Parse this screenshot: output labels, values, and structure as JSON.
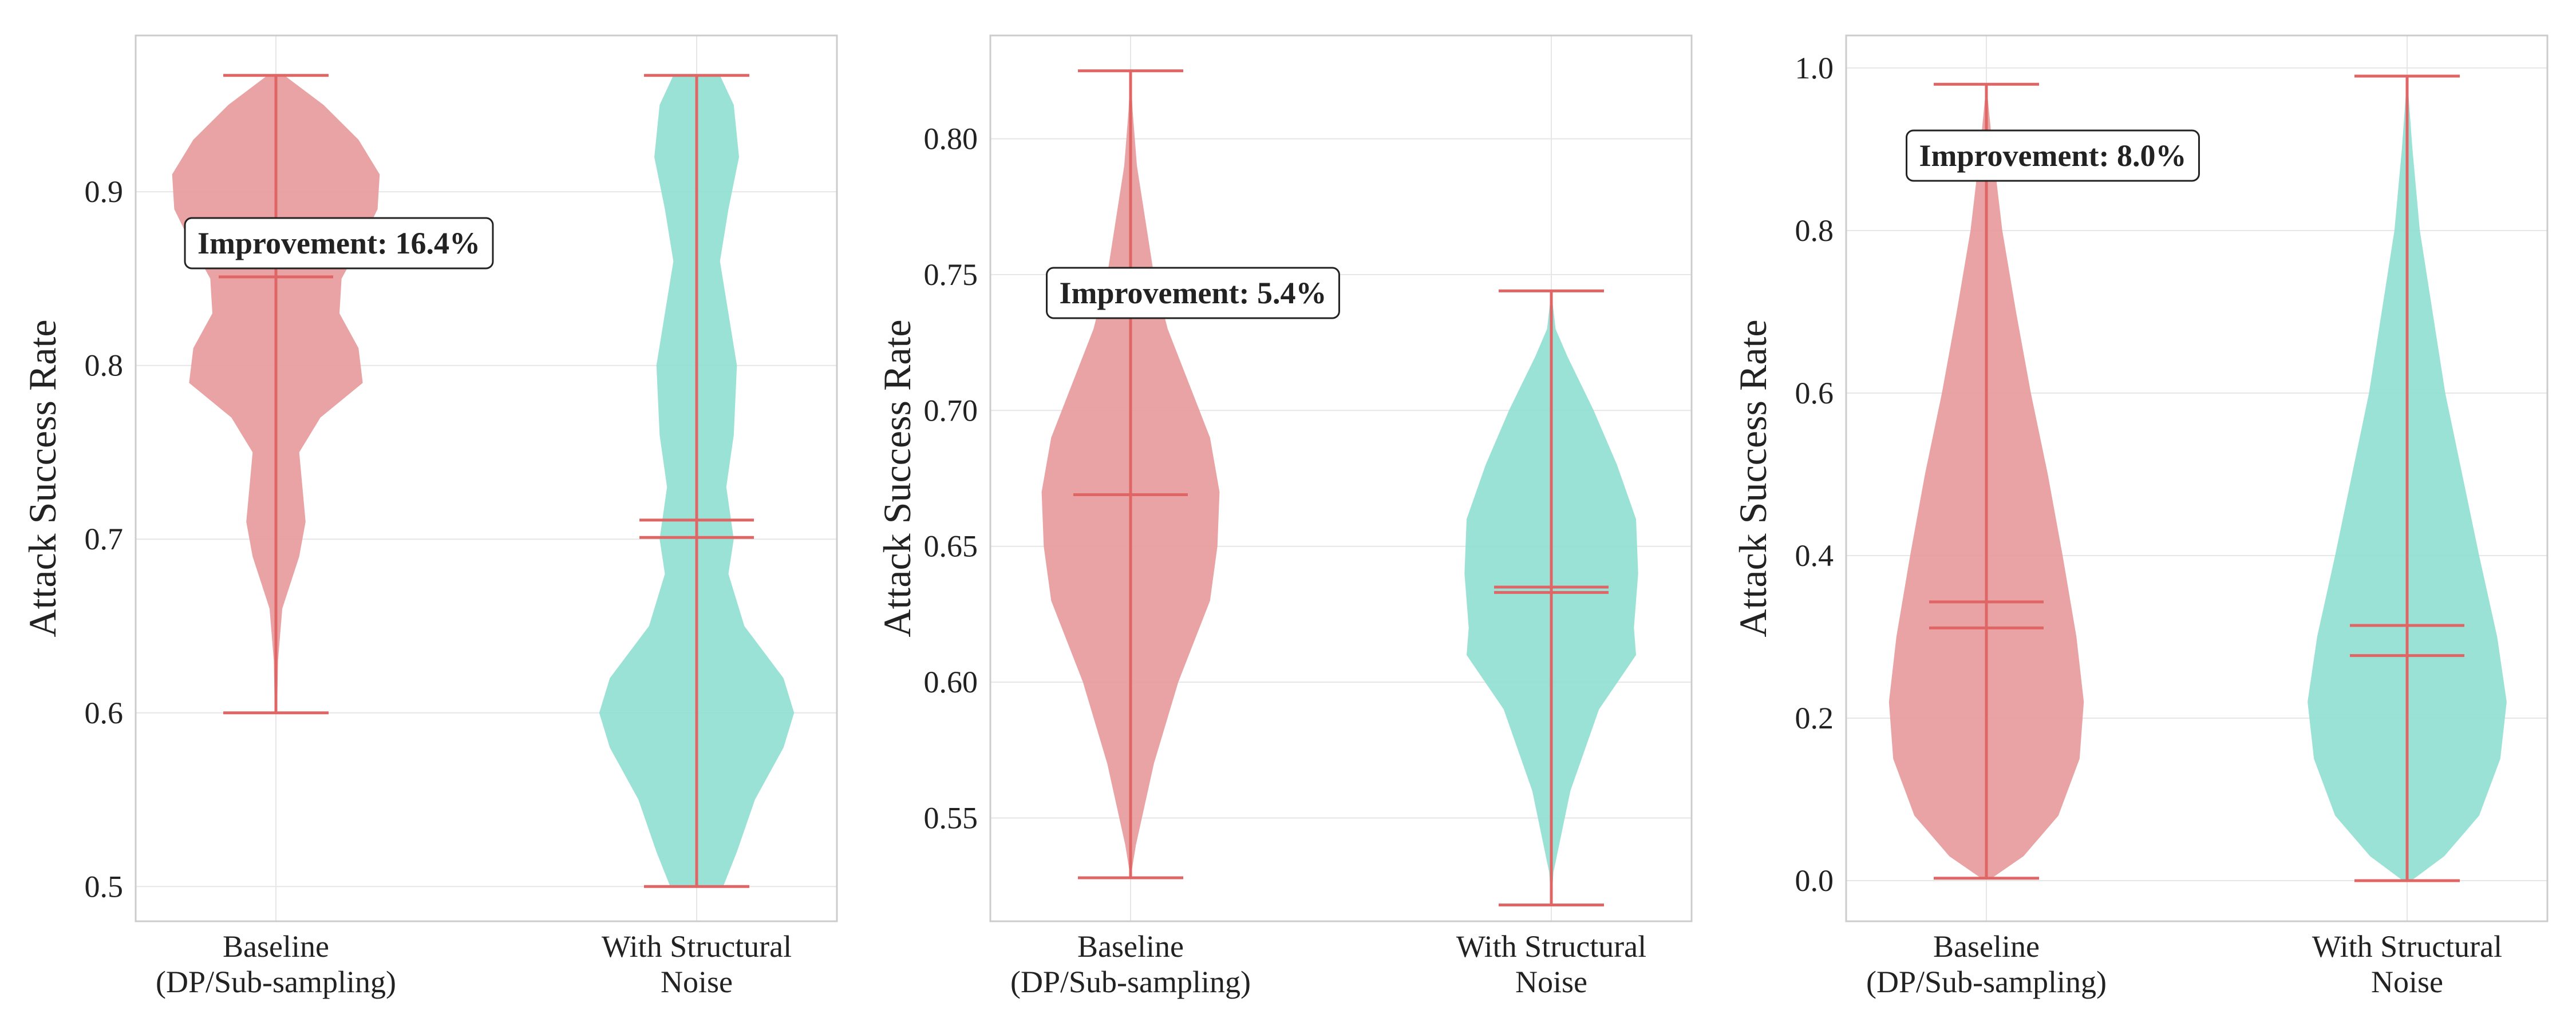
{
  "colors": {
    "baseline": "#e8999a",
    "structural": "#8fdfd2",
    "lines": "#e06666",
    "grid": "#e6e6e6",
    "frame": "#cccccc"
  },
  "chart_data": [
    {
      "type": "violin",
      "ylabel": "Attack Success Rate",
      "categories": [
        "Baseline\n(DP/Sub-sampling)",
        "With Structural\nNoise"
      ],
      "ylim": [
        0.48,
        0.99
      ],
      "yticks": [
        0.5,
        0.6,
        0.7,
        0.8,
        0.9
      ],
      "ytick_labels": [
        "0.5",
        "0.6",
        "0.7",
        "0.8",
        "0.9"
      ],
      "grid": true,
      "annotation": "Improvement: 16.4%",
      "series": [
        {
          "min": 0.6,
          "max": 0.967,
          "mean": 0.857,
          "median": 0.851,
          "density": [
            [
              0.6,
              0.01
            ],
            [
              0.63,
              0.02
            ],
            [
              0.66,
              0.06
            ],
            [
              0.69,
              0.22
            ],
            [
              0.71,
              0.28
            ],
            [
              0.73,
              0.25
            ],
            [
              0.75,
              0.22
            ],
            [
              0.77,
              0.42
            ],
            [
              0.79,
              0.82
            ],
            [
              0.81,
              0.78
            ],
            [
              0.83,
              0.6
            ],
            [
              0.85,
              0.62
            ],
            [
              0.87,
              0.8
            ],
            [
              0.89,
              0.96
            ],
            [
              0.91,
              0.98
            ],
            [
              0.93,
              0.78
            ],
            [
              0.95,
              0.45
            ],
            [
              0.967,
              0.08
            ]
          ]
        },
        {
          "min": 0.5,
          "max": 0.967,
          "mean": 0.711,
          "median": 0.701,
          "density": [
            [
              0.5,
              0.25
            ],
            [
              0.52,
              0.38
            ],
            [
              0.55,
              0.55
            ],
            [
              0.58,
              0.82
            ],
            [
              0.6,
              0.92
            ],
            [
              0.62,
              0.82
            ],
            [
              0.65,
              0.45
            ],
            [
              0.68,
              0.3
            ],
            [
              0.7,
              0.35
            ],
            [
              0.73,
              0.28
            ],
            [
              0.76,
              0.35
            ],
            [
              0.8,
              0.38
            ],
            [
              0.83,
              0.3
            ],
            [
              0.86,
              0.22
            ],
            [
              0.89,
              0.3
            ],
            [
              0.92,
              0.4
            ],
            [
              0.95,
              0.35
            ],
            [
              0.967,
              0.22
            ]
          ]
        }
      ]
    },
    {
      "type": "violin",
      "ylabel": "Attack Success Rate",
      "categories": [
        "Baseline\n(DP/Sub-sampling)",
        "With Structural\nNoise"
      ],
      "ylim": [
        0.512,
        0.838
      ],
      "yticks": [
        0.55,
        0.6,
        0.65,
        0.7,
        0.75,
        0.8
      ],
      "ytick_labels": [
        "0.55",
        "0.60",
        "0.65",
        "0.70",
        "0.75",
        "0.80"
      ],
      "grid": true,
      "annotation": "Improvement: 5.4%",
      "series": [
        {
          "min": 0.528,
          "max": 0.825,
          "mean": 0.669,
          "median": 0.669,
          "density": [
            [
              0.528,
              0.0
            ],
            [
              0.54,
              0.05
            ],
            [
              0.57,
              0.22
            ],
            [
              0.6,
              0.45
            ],
            [
              0.63,
              0.75
            ],
            [
              0.65,
              0.82
            ],
            [
              0.67,
              0.84
            ],
            [
              0.69,
              0.75
            ],
            [
              0.71,
              0.55
            ],
            [
              0.73,
              0.35
            ],
            [
              0.75,
              0.22
            ],
            [
              0.77,
              0.14
            ],
            [
              0.79,
              0.06
            ],
            [
              0.81,
              0.02
            ],
            [
              0.825,
              0.0
            ]
          ]
        },
        {
          "min": 0.518,
          "max": 0.744,
          "mean": 0.635,
          "median": 0.633,
          "density": [
            [
              0.518,
              0.0
            ],
            [
              0.53,
              0.02
            ],
            [
              0.56,
              0.18
            ],
            [
              0.59,
              0.45
            ],
            [
              0.61,
              0.8
            ],
            [
              0.62,
              0.78
            ],
            [
              0.64,
              0.82
            ],
            [
              0.66,
              0.8
            ],
            [
              0.68,
              0.62
            ],
            [
              0.7,
              0.4
            ],
            [
              0.72,
              0.15
            ],
            [
              0.73,
              0.04
            ],
            [
              0.744,
              0.0
            ]
          ]
        }
      ]
    },
    {
      "type": "violin",
      "ylabel": "Attack Success Rate",
      "categories": [
        "Baseline\n(DP/Sub-sampling)",
        "With Structural\nNoise"
      ],
      "ylim": [
        -0.05,
        1.04
      ],
      "yticks": [
        0.0,
        0.2,
        0.4,
        0.6,
        0.8,
        1.0
      ],
      "ytick_labels": [
        "0.0",
        "0.2",
        "0.4",
        "0.6",
        "0.8",
        "1.0"
      ],
      "grid": true,
      "annotation": "Improvement: 8.0%",
      "series": [
        {
          "min": 0.003,
          "max": 0.98,
          "mean": 0.343,
          "median": 0.311,
          "density": [
            [
              0.003,
              0.05
            ],
            [
              0.03,
              0.35
            ],
            [
              0.08,
              0.68
            ],
            [
              0.15,
              0.88
            ],
            [
              0.22,
              0.92
            ],
            [
              0.3,
              0.85
            ],
            [
              0.4,
              0.72
            ],
            [
              0.5,
              0.58
            ],
            [
              0.6,
              0.42
            ],
            [
              0.7,
              0.28
            ],
            [
              0.8,
              0.15
            ],
            [
              0.9,
              0.06
            ],
            [
              0.98,
              0.0
            ]
          ]
        },
        {
          "min": 0.0,
          "max": 0.99,
          "mean": 0.314,
          "median": 0.277,
          "density": [
            [
              0.0,
              0.04
            ],
            [
              0.03,
              0.35
            ],
            [
              0.08,
              0.68
            ],
            [
              0.15,
              0.88
            ],
            [
              0.22,
              0.94
            ],
            [
              0.3,
              0.85
            ],
            [
              0.4,
              0.68
            ],
            [
              0.5,
              0.52
            ],
            [
              0.6,
              0.36
            ],
            [
              0.7,
              0.24
            ],
            [
              0.8,
              0.12
            ],
            [
              0.9,
              0.05
            ],
            [
              0.99,
              0.0
            ]
          ]
        }
      ]
    }
  ]
}
